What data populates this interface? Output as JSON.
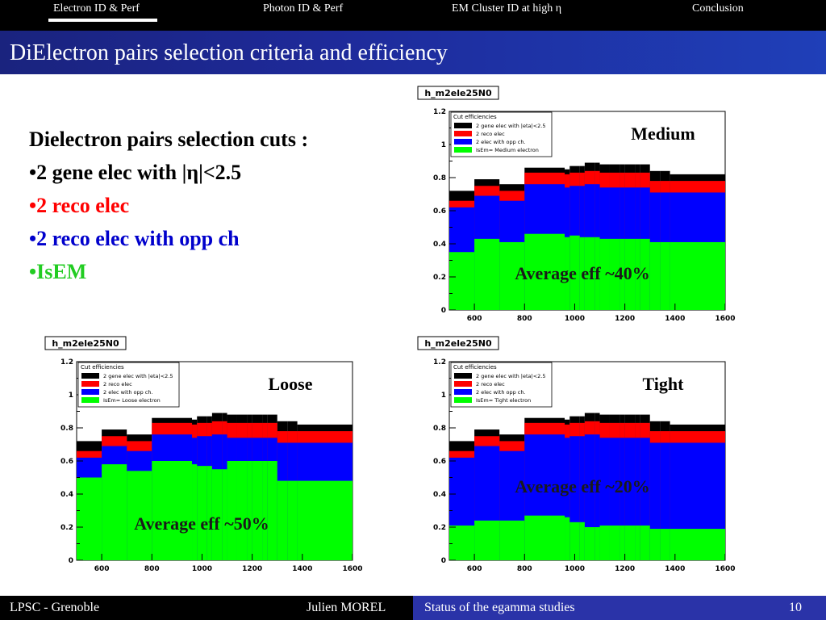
{
  "nav": {
    "tabs": [
      "Electron ID & Perf",
      "Photon ID & Perf",
      "EM Cluster ID at high η",
      "Conclusion"
    ],
    "active_tab": 0
  },
  "title": "DiElectron pairs selection criteria and efficiency",
  "cuts": {
    "heading": "Dielectron pairs selection cuts :",
    "items": [
      {
        "bullet": "•",
        "text": "2 gene elec with |η|<2.5",
        "color": "#000000"
      },
      {
        "bullet": "•",
        "text": "2 reco elec",
        "color": "#ff0000"
      },
      {
        "bullet": "•",
        "text": "2 reco elec with opp ch",
        "color": "#0000cc"
      },
      {
        "bullet": "•",
        "text": "IsEM",
        "color": "#22cc22"
      }
    ]
  },
  "colors": {
    "gene": "#000000",
    "reco": "#ff0000",
    "oppch": "#0000ff",
    "isem": "#00ff00"
  },
  "chart_data": [
    {
      "type": "bar",
      "hist_title": "h_m2ele25N0",
      "panel_label": "Medium",
      "annotation": "Average eff ~40%",
      "legend_title": "Cut efficiencies",
      "legend": [
        "2 gene elec with |eta|<2.5",
        "2 reco elec",
        "2 elec with opp ch.",
        "IsEm= Medium electron"
      ],
      "xlim": [
        500,
        1600
      ],
      "ylim": [
        0,
        1.2
      ],
      "xticks": [
        600,
        800,
        1000,
        1200,
        1400,
        1600
      ],
      "yticks": [
        "0",
        "0.2",
        "0.4",
        "0.6",
        "0.8",
        "1",
        "1.2"
      ],
      "bin_edges": [
        500,
        600,
        700,
        800,
        960,
        980,
        1020,
        1040,
        1080,
        1100,
        1140,
        1180,
        1200,
        1240,
        1260,
        1300,
        1340,
        1380,
        1600
      ],
      "series": [
        {
          "name": "2 gene elec with |eta|<2.5",
          "values": [
            0.72,
            0.79,
            0.76,
            0.86,
            0.85,
            0.87,
            0.87,
            0.89,
            0.89,
            0.88,
            0.88,
            0.88,
            0.88,
            0.88,
            0.88,
            0.84,
            0.84,
            0.82
          ]
        },
        {
          "name": "2 reco elec",
          "values": [
            0.66,
            0.75,
            0.72,
            0.83,
            0.82,
            0.83,
            0.83,
            0.84,
            0.84,
            0.83,
            0.83,
            0.83,
            0.83,
            0.83,
            0.83,
            0.78,
            0.78,
            0.78
          ]
        },
        {
          "name": "2 elec with opp ch.",
          "values": [
            0.62,
            0.69,
            0.66,
            0.76,
            0.74,
            0.75,
            0.75,
            0.76,
            0.76,
            0.74,
            0.74,
            0.74,
            0.74,
            0.74,
            0.74,
            0.71,
            0.71,
            0.71
          ]
        },
        {
          "name": "IsEm= Medium electron",
          "values": [
            0.35,
            0.43,
            0.41,
            0.46,
            0.44,
            0.45,
            0.44,
            0.44,
            0.44,
            0.43,
            0.43,
            0.43,
            0.43,
            0.43,
            0.43,
            0.41,
            0.41,
            0.41
          ]
        }
      ]
    },
    {
      "type": "bar",
      "hist_title": "h_m2ele25N0",
      "panel_label": "Loose",
      "annotation": "Average eff ~50%",
      "legend_title": "Cut efficiencies",
      "legend": [
        "2 gene elec with |eta|<2.5",
        "2 reco elec",
        "2 elec with opp ch.",
        "IsEm= Loose electron"
      ],
      "xlim": [
        500,
        1600
      ],
      "ylim": [
        0,
        1.2
      ],
      "xticks": [
        600,
        800,
        1000,
        1200,
        1400,
        1600
      ],
      "yticks": [
        "0",
        "0.2",
        "0.4",
        "0.6",
        "0.8",
        "1",
        "1.2"
      ],
      "bin_edges": [
        500,
        600,
        700,
        800,
        960,
        980,
        1020,
        1040,
        1080,
        1100,
        1140,
        1180,
        1200,
        1240,
        1260,
        1300,
        1340,
        1380,
        1600
      ],
      "series": [
        {
          "name": "2 gene elec with |eta|<2.5",
          "values": [
            0.72,
            0.79,
            0.76,
            0.86,
            0.85,
            0.87,
            0.87,
            0.89,
            0.89,
            0.88,
            0.88,
            0.88,
            0.88,
            0.88,
            0.88,
            0.84,
            0.84,
            0.82
          ]
        },
        {
          "name": "2 reco elec",
          "values": [
            0.66,
            0.75,
            0.72,
            0.83,
            0.82,
            0.83,
            0.83,
            0.84,
            0.84,
            0.83,
            0.83,
            0.83,
            0.83,
            0.83,
            0.83,
            0.78,
            0.78,
            0.78
          ]
        },
        {
          "name": "2 elec with opp ch.",
          "values": [
            0.62,
            0.69,
            0.66,
            0.76,
            0.74,
            0.75,
            0.75,
            0.76,
            0.76,
            0.74,
            0.74,
            0.74,
            0.74,
            0.74,
            0.74,
            0.71,
            0.71,
            0.71
          ]
        },
        {
          "name": "IsEm= Loose electron",
          "values": [
            0.5,
            0.58,
            0.54,
            0.6,
            0.58,
            0.57,
            0.57,
            0.55,
            0.55,
            0.6,
            0.6,
            0.6,
            0.6,
            0.6,
            0.6,
            0.48,
            0.48,
            0.48
          ]
        }
      ]
    },
    {
      "type": "bar",
      "hist_title": "h_m2ele25N0",
      "panel_label": "Tight",
      "annotation": "Average eff ~20%",
      "legend_title": "Cut efficiencies",
      "legend": [
        "2 gene elec with |eta|<2.5",
        "2 reco elec",
        "2 elec with opp ch.",
        "IsEm= Tight electron"
      ],
      "xlim": [
        500,
        1600
      ],
      "ylim": [
        0,
        1.2
      ],
      "xticks": [
        600,
        800,
        1000,
        1200,
        1400,
        1600
      ],
      "yticks": [
        "0",
        "0.2",
        "0.4",
        "0.6",
        "0.8",
        "1",
        "1.2"
      ],
      "bin_edges": [
        500,
        600,
        700,
        800,
        960,
        980,
        1020,
        1040,
        1080,
        1100,
        1140,
        1180,
        1200,
        1240,
        1260,
        1300,
        1340,
        1380,
        1600
      ],
      "series": [
        {
          "name": "2 gene elec with |eta|<2.5",
          "values": [
            0.72,
            0.79,
            0.76,
            0.86,
            0.85,
            0.87,
            0.87,
            0.89,
            0.89,
            0.88,
            0.88,
            0.88,
            0.88,
            0.88,
            0.88,
            0.84,
            0.84,
            0.82
          ]
        },
        {
          "name": "2 reco elec",
          "values": [
            0.66,
            0.75,
            0.72,
            0.83,
            0.82,
            0.83,
            0.83,
            0.84,
            0.84,
            0.83,
            0.83,
            0.83,
            0.83,
            0.83,
            0.83,
            0.78,
            0.78,
            0.78
          ]
        },
        {
          "name": "2 elec with opp ch.",
          "values": [
            0.62,
            0.69,
            0.66,
            0.76,
            0.74,
            0.75,
            0.75,
            0.76,
            0.76,
            0.74,
            0.74,
            0.74,
            0.74,
            0.74,
            0.74,
            0.71,
            0.71,
            0.71
          ]
        },
        {
          "name": "IsEm= Tight electron",
          "values": [
            0.21,
            0.24,
            0.24,
            0.27,
            0.26,
            0.23,
            0.23,
            0.2,
            0.2,
            0.21,
            0.21,
            0.21,
            0.21,
            0.21,
            0.21,
            0.19,
            0.19,
            0.19
          ]
        }
      ]
    }
  ],
  "footer": {
    "lab": "LPSC - Grenoble",
    "author": "Julien MOREL",
    "talk": "Status of the egamma studies",
    "page": "10"
  }
}
